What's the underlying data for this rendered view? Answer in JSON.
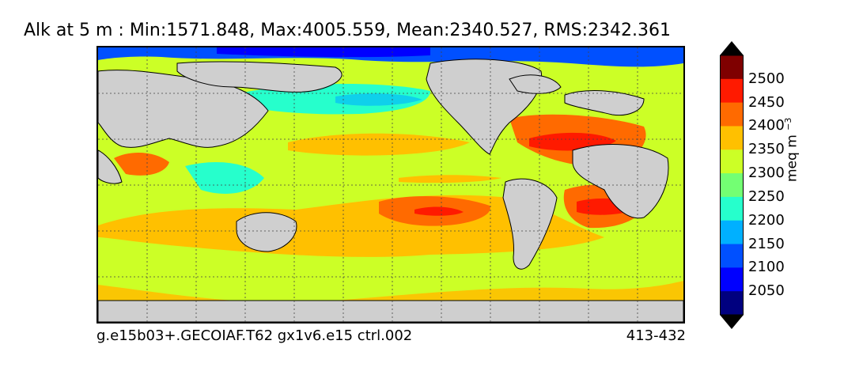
{
  "title": "Alk at 5 m : Min:1571.848, Max:4005.559, Mean:2340.527, RMS:2342.361",
  "footer": {
    "left": "g.e15b03+.GECOIAF.T62 gx1v6.e15 ctrl.002",
    "right": "413-432"
  },
  "colorbar": {
    "unit_text": "meq m",
    "unit_exp": "−3",
    "levels": [
      "2500",
      "2450",
      "2400",
      "2350",
      "2300",
      "2250",
      "2200",
      "2150",
      "2100",
      "2050"
    ],
    "colors": [
      "#7f0000",
      "#ff1a00",
      "#ff6a00",
      "#ffc000",
      "#ccff26",
      "#73ff73",
      "#26ffcc",
      "#00b0ff",
      "#0050ff",
      "#0000ff",
      "#00007f"
    ]
  },
  "map": {
    "land_color": "#cfcfcf",
    "ocean_base_color": "#ccff26",
    "grid": "dotted"
  }
}
